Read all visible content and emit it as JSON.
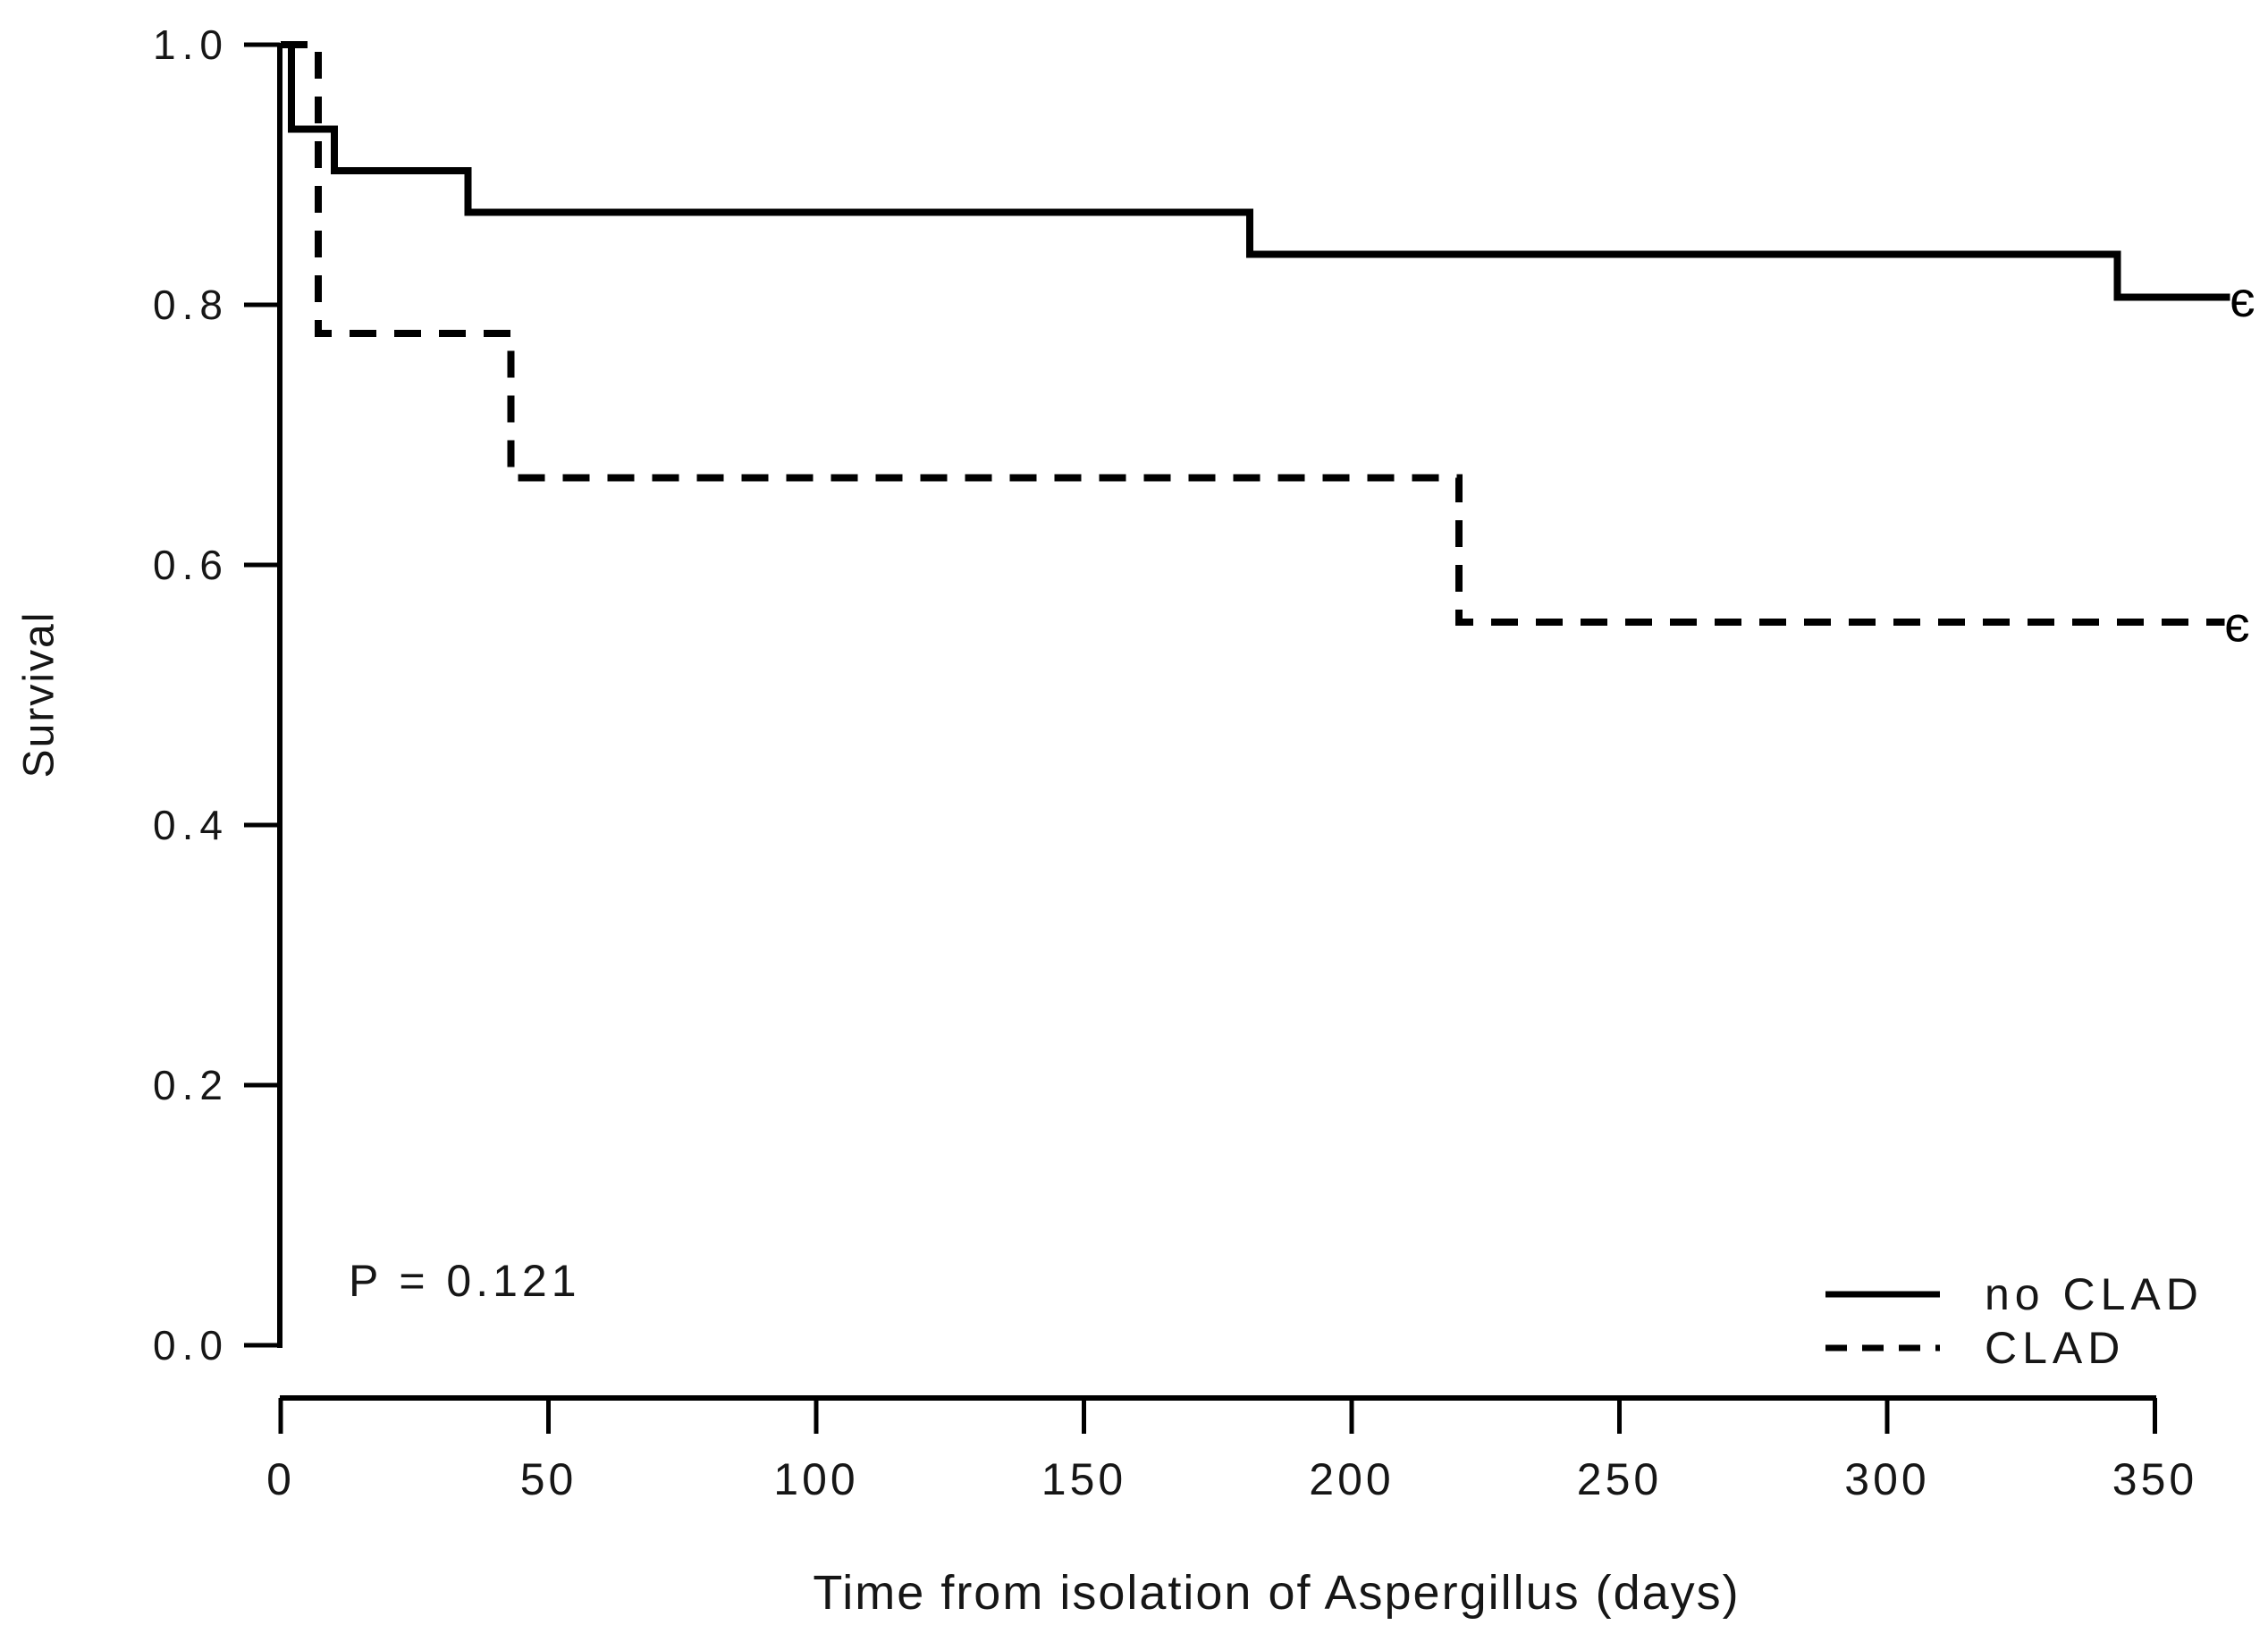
{
  "figure": {
    "background": "#ffffff",
    "line_color": "#000000",
    "text_color": "#161616"
  },
  "chart_data": {
    "type": "line",
    "subtype": "kaplan-meier-step",
    "title": "",
    "xlabel": "Time from isolation of Aspergillus (days)",
    "ylabel": "Survival",
    "annotation": "P = 0.121",
    "xlim": [
      0,
      365
    ],
    "ylim": [
      0.0,
      1.0
    ],
    "grid": false,
    "legend_position": "bottom-right",
    "x_ticks": [
      {
        "value": 0,
        "label": "0"
      },
      {
        "value": 50,
        "label": "50"
      },
      {
        "value": 100,
        "label": "100"
      },
      {
        "value": 150,
        "label": "150"
      },
      {
        "value": 200,
        "label": "200"
      },
      {
        "value": 250,
        "label": "250"
      },
      {
        "value": 300,
        "label": "300"
      },
      {
        "value": 350,
        "label": "350"
      }
    ],
    "y_ticks": [
      {
        "value": 1.0,
        "label": "1.0"
      },
      {
        "value": 0.8,
        "label": "0.8"
      },
      {
        "value": 0.6,
        "label": "0.6"
      },
      {
        "value": 0.4,
        "label": "0.4"
      },
      {
        "value": 0.2,
        "label": "0.2"
      },
      {
        "value": 0.0,
        "label": "0.0"
      }
    ],
    "censor_marker": "є",
    "series": [
      {
        "name": "no CLAD",
        "line_style": "solid",
        "color": "#000000",
        "steps": [
          [
            0,
            1.0
          ],
          [
            2,
            0.935
          ],
          [
            10,
            0.903
          ],
          [
            35,
            0.871
          ],
          [
            181,
            0.839
          ],
          [
            343,
            0.806
          ]
        ],
        "end_time": 364,
        "censored_at_end": true
      },
      {
        "name": "CLAD",
        "line_style": "dashed",
        "color": "#000000",
        "steps": [
          [
            0,
            1.0
          ],
          [
            7,
            0.778
          ],
          [
            43,
            0.667
          ],
          [
            220,
            0.556
          ]
        ],
        "end_time": 363,
        "censored_at_end": true
      }
    ]
  }
}
